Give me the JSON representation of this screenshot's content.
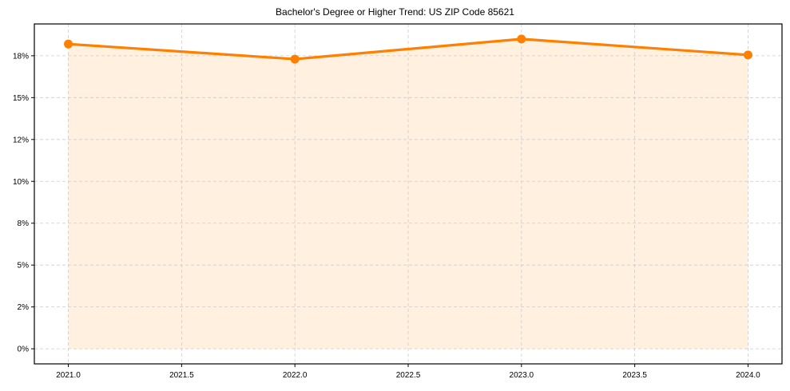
{
  "title": "Bachelor's Degree or Higher Trend: US ZIP Code 85621",
  "colors": {
    "line": "#ff8000",
    "fill": "#fff0e0",
    "grid": "#cccccc",
    "axis": "#000000"
  },
  "chart_data": {
    "type": "line",
    "title": "Bachelor's Degree or Higher Trend: US ZIP Code 85621",
    "xlabel": "",
    "ylabel": "",
    "x": [
      2021,
      2022,
      2023,
      2024
    ],
    "series": [
      {
        "name": "Bachelor's Degree or Higher (%)",
        "values": [
          18.2,
          17.3,
          18.5,
          17.55
        ],
        "marker": "circle",
        "fill_below": true
      }
    ],
    "xticks": [
      "2021.0",
      "2021.5",
      "2022.0",
      "2022.5",
      "2023.0",
      "2023.5",
      "2024.0"
    ],
    "yticks": [
      "0%",
      "2%",
      "5%",
      "8%",
      "10%",
      "12%",
      "15%",
      "18%"
    ],
    "ytick_values": [
      0,
      2.5,
      5,
      7.5,
      10,
      12.5,
      15,
      17.5
    ],
    "xlim": [
      2020.85,
      2024.15
    ],
    "ylim": [
      -0.9,
      19.4
    ],
    "grid": true,
    "legend": null
  }
}
